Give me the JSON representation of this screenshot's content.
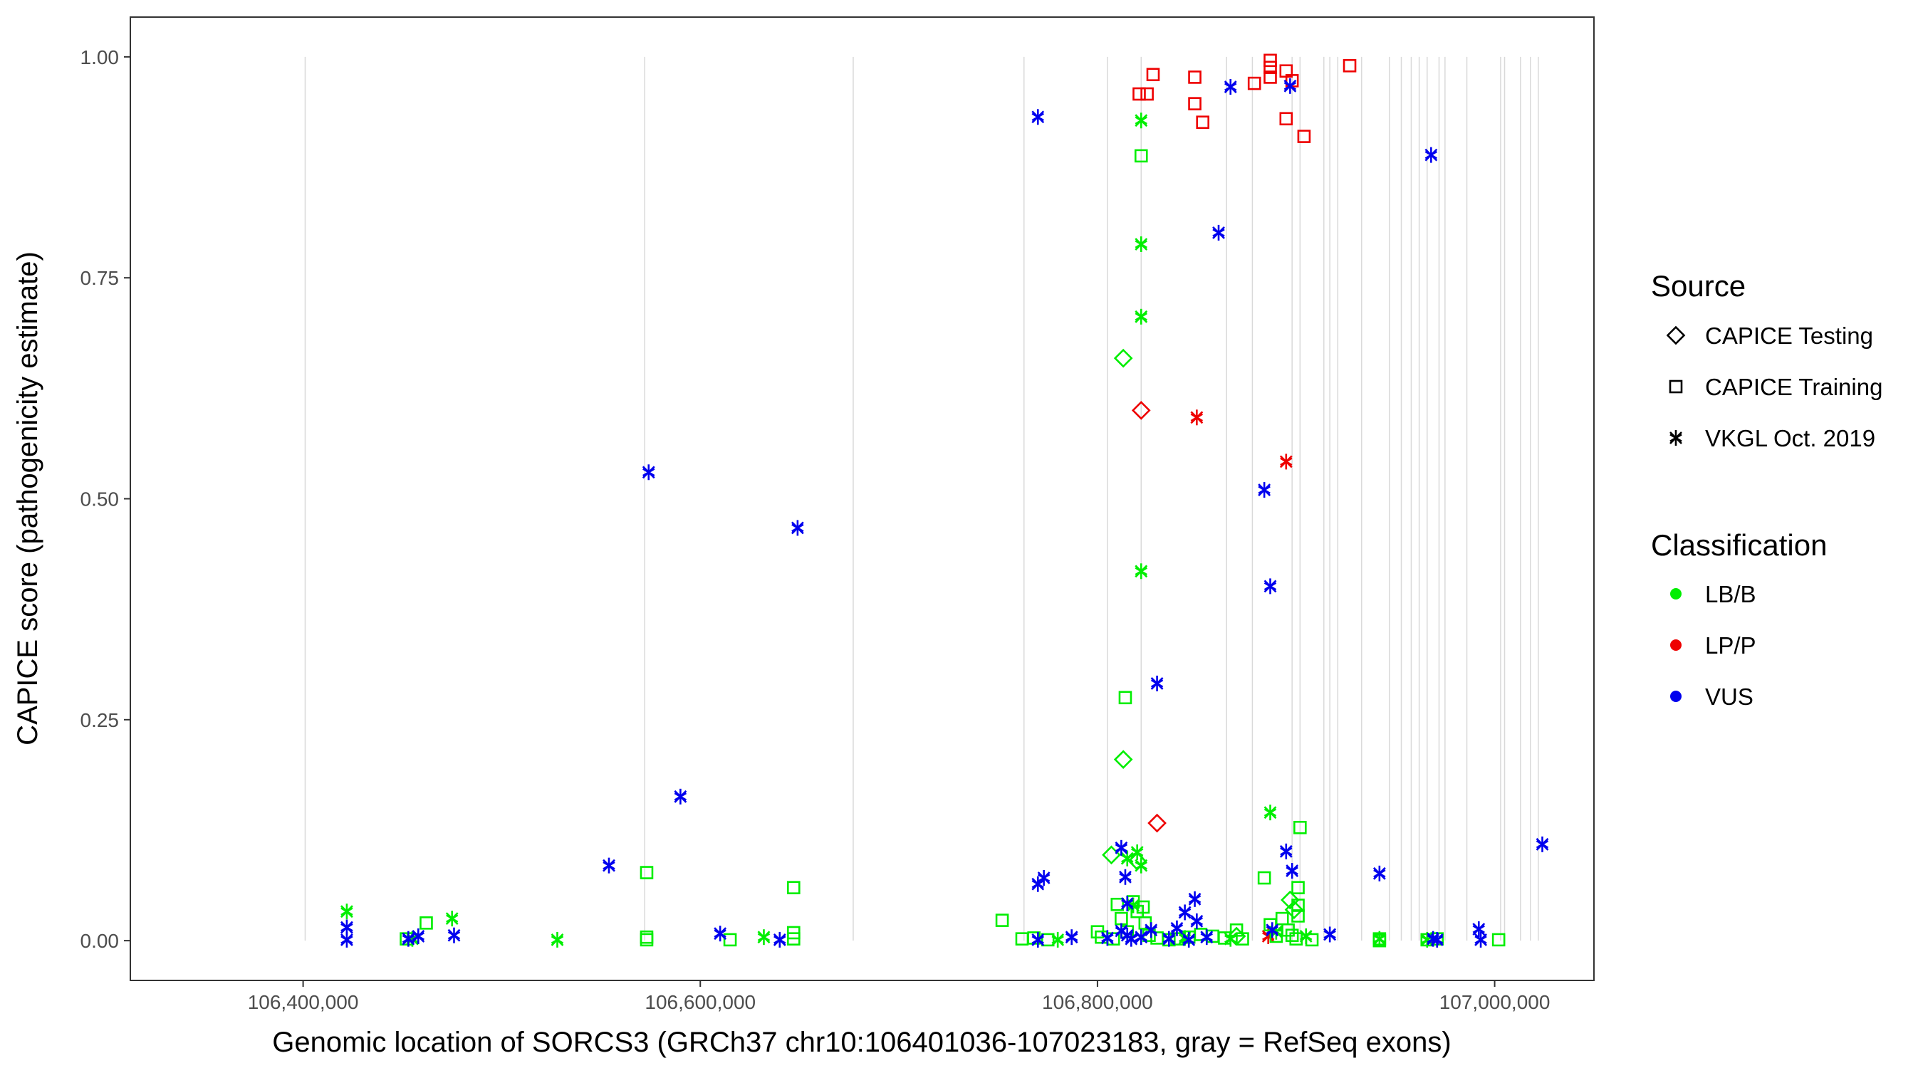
{
  "chart_data": {
    "type": "scatter",
    "xlabel": "Genomic location of SORCS3 (GRCh37 chr10:106401036-107023183, gray = RefSeq exons)",
    "ylabel": "CAPICE score (pathogenicity estimate)",
    "xlim": [
      106313000,
      107050000
    ],
    "ylim": [
      -0.045,
      1.045
    ],
    "x_ticks": [
      106400000,
      106600000,
      106800000,
      107000000
    ],
    "x_tick_labels": [
      "106,400,000",
      "106,600,000",
      "106,800,000",
      "107,000,000"
    ],
    "y_ticks": [
      0,
      0.25,
      0.5,
      0.75,
      1.0
    ],
    "y_tick_labels": [
      "0.00",
      "0.25",
      "0.50",
      "0.75",
      "1.00"
    ],
    "grid": "vertical exon lines only",
    "exon_positions": [
      106401036,
      106572000,
      106677000,
      106763000,
      106805000,
      106822000,
      106865000,
      106878000,
      106898000,
      106902000,
      106914000,
      106917000,
      106921000,
      106933000,
      106947000,
      106953000,
      106958000,
      106962000,
      106966000,
      106972000,
      106975000,
      106986000,
      107003000,
      107005000,
      107013000,
      107018000,
      107022000
    ],
    "legend_source": {
      "title": "Source",
      "entries": [
        {
          "label": "CAPICE Testing",
          "shape": "diamond"
        },
        {
          "label": "CAPICE Training",
          "shape": "square"
        },
        {
          "label": "VKGL Oct. 2019",
          "shape": "asterisk"
        }
      ]
    },
    "legend_classification": {
      "title": "Classification",
      "entries": [
        {
          "label": "LB/B",
          "color": "#00ee00"
        },
        {
          "label": "LP/P",
          "color": "#ee0000"
        },
        {
          "label": "VUS",
          "color": "#0000ee"
        }
      ]
    },
    "legend_placement": "right",
    "colors": {
      "LB/B": "#00ee00",
      "LP/P": "#ee0000",
      "VUS": "#0000ee"
    },
    "series": [
      {
        "source": "CAPICE Training",
        "classification": "LP/P",
        "points": [
          [
            106821000,
            0.958
          ],
          [
            106825000,
            0.958
          ],
          [
            106828000,
            0.98
          ],
          [
            106849000,
            0.977
          ],
          [
            106849000,
            0.947
          ],
          [
            106853000,
            0.926
          ],
          [
            106879000,
            0.97
          ],
          [
            106887000,
            0.996
          ],
          [
            106887000,
            0.988
          ],
          [
            106887000,
            0.977
          ],
          [
            106895000,
            0.984
          ],
          [
            106898000,
            0.973
          ],
          [
            106895000,
            0.93
          ],
          [
            106904000,
            0.91
          ],
          [
            106927000,
            0.99
          ]
        ]
      },
      {
        "source": "CAPICE Testing",
        "classification": "LP/P",
        "points": [
          [
            106822000,
            0.6
          ],
          [
            106830000,
            0.133
          ]
        ]
      },
      {
        "source": "VKGL Oct. 2019",
        "classification": "LP/P",
        "points": [
          [
            106850000,
            0.592
          ],
          [
            106895000,
            0.542
          ],
          [
            106886000,
            0.005
          ]
        ]
      },
      {
        "source": "CAPICE Training",
        "classification": "LB/B",
        "points": [
          [
            106822000,
            0.888
          ],
          [
            106814000,
            0.275
          ],
          [
            106462000,
            0.02
          ],
          [
            106452000,
            0.002
          ],
          [
            106573000,
            0.077
          ],
          [
            106573000,
            0.004
          ],
          [
            106573000,
            0.001
          ],
          [
            106615000,
            0.001
          ],
          [
            106647000,
            0.06
          ],
          [
            106647000,
            0.009
          ],
          [
            106647000,
            0.002
          ],
          [
            106752000,
            0.023
          ],
          [
            106762000,
            0.002
          ],
          [
            106768000,
            0.003
          ],
          [
            106775000,
            0.001
          ],
          [
            106800000,
            0.01
          ],
          [
            106802000,
            0.004
          ],
          [
            106808000,
            0.002
          ],
          [
            106810000,
            0.041
          ],
          [
            106812000,
            0.025
          ],
          [
            106815000,
            0.01
          ],
          [
            106818000,
            0.044
          ],
          [
            106820000,
            0.033
          ],
          [
            106823000,
            0.038
          ],
          [
            106824000,
            0.02
          ],
          [
            106826000,
            0.006
          ],
          [
            106830000,
            0.003
          ],
          [
            106836000,
            0.001
          ],
          [
            106840000,
            0.002
          ],
          [
            106846000,
            0.004
          ],
          [
            106852000,
            0.007
          ],
          [
            106858000,
            0.005
          ],
          [
            106864000,
            0.003
          ],
          [
            106870000,
            0.012
          ],
          [
            106873000,
            0.002
          ],
          [
            106884000,
            0.071
          ],
          [
            106887000,
            0.018
          ],
          [
            106890000,
            0.005
          ],
          [
            106893000,
            0.025
          ],
          [
            106896000,
            0.012
          ],
          [
            106898000,
            0.006
          ],
          [
            106900000,
            0.002
          ],
          [
            106901000,
            0.06
          ],
          [
            106901000,
            0.04
          ],
          [
            106901000,
            0.028
          ],
          [
            106902000,
            0.128
          ],
          [
            106908000,
            0.001
          ],
          [
            106942000,
            0.002
          ],
          [
            106942000,
            0.0
          ],
          [
            106966000,
            0.001
          ],
          [
            106971000,
            0.002
          ],
          [
            107002000,
            0.001
          ]
        ]
      },
      {
        "source": "CAPICE Testing",
        "classification": "LB/B",
        "points": [
          [
            106813000,
            0.659
          ],
          [
            106813000,
            0.205
          ],
          [
            106807000,
            0.097
          ],
          [
            106820000,
            0.09
          ],
          [
            106870000,
            0.005
          ],
          [
            106897000,
            0.046
          ],
          [
            106899000,
            0.035
          ]
        ]
      },
      {
        "source": "VKGL Oct. 2019",
        "classification": "LB/B",
        "points": [
          [
            106822000,
            0.928
          ],
          [
            106822000,
            0.788
          ],
          [
            106822000,
            0.706
          ],
          [
            106822000,
            0.418
          ],
          [
            106422000,
            0.033
          ],
          [
            106455000,
            0.002
          ],
          [
            106475000,
            0.025
          ],
          [
            106528000,
            0.001
          ],
          [
            106632000,
            0.004
          ],
          [
            106780000,
            0.001
          ],
          [
            106815000,
            0.093
          ],
          [
            106820000,
            0.1
          ],
          [
            106822000,
            0.085
          ],
          [
            106887000,
            0.145
          ],
          [
            106890000,
            0.01
          ],
          [
            106905000,
            0.005
          ],
          [
            106942000,
            0.002
          ],
          [
            106966000,
            0.001
          ],
          [
            106818000,
            0.04
          ],
          [
            106844000,
            0.003
          ],
          [
            106867000,
            0.002
          ]
        ]
      },
      {
        "source": "VKGL Oct. 2019",
        "classification": "VUS",
        "points": [
          [
            106770000,
            0.932
          ],
          [
            106867000,
            0.966
          ],
          [
            106897000,
            0.967
          ],
          [
            106861000,
            0.801
          ],
          [
            106968000,
            0.889
          ],
          [
            106574000,
            0.53
          ],
          [
            106649000,
            0.467
          ],
          [
            106884000,
            0.51
          ],
          [
            106887000,
            0.401
          ],
          [
            106830000,
            0.291
          ],
          [
            106590000,
            0.163
          ],
          [
            106554000,
            0.085
          ],
          [
            106812000,
            0.105
          ],
          [
            106895000,
            0.101
          ],
          [
            106898000,
            0.079
          ],
          [
            106942000,
            0.076
          ],
          [
            107024000,
            0.109
          ],
          [
            106773000,
            0.071
          ],
          [
            106770000,
            0.064
          ],
          [
            106849000,
            0.047
          ],
          [
            106815000,
            0.042
          ],
          [
            106844000,
            0.032
          ],
          [
            106814000,
            0.072
          ],
          [
            106422000,
            0.015
          ],
          [
            106422000,
            0.001
          ],
          [
            106453000,
            0.002
          ],
          [
            106458000,
            0.005
          ],
          [
            106476000,
            0.006
          ],
          [
            106610000,
            0.008
          ],
          [
            106640000,
            0.001
          ],
          [
            106770000,
            0.001
          ],
          [
            106787000,
            0.004
          ],
          [
            106805000,
            0.003
          ],
          [
            106812000,
            0.011
          ],
          [
            106815000,
            0.006
          ],
          [
            106817000,
            0.002
          ],
          [
            106822000,
            0.004
          ],
          [
            106827000,
            0.012
          ],
          [
            106836000,
            0.002
          ],
          [
            106840000,
            0.014
          ],
          [
            106846000,
            0.001
          ],
          [
            106850000,
            0.022
          ],
          [
            106855000,
            0.004
          ],
          [
            106888000,
            0.012
          ],
          [
            106917000,
            0.007
          ],
          [
            106969000,
            0.002
          ],
          [
            106971000,
            0.001
          ],
          [
            106992000,
            0.013
          ],
          [
            106993000,
            0.001
          ]
        ]
      }
    ]
  }
}
